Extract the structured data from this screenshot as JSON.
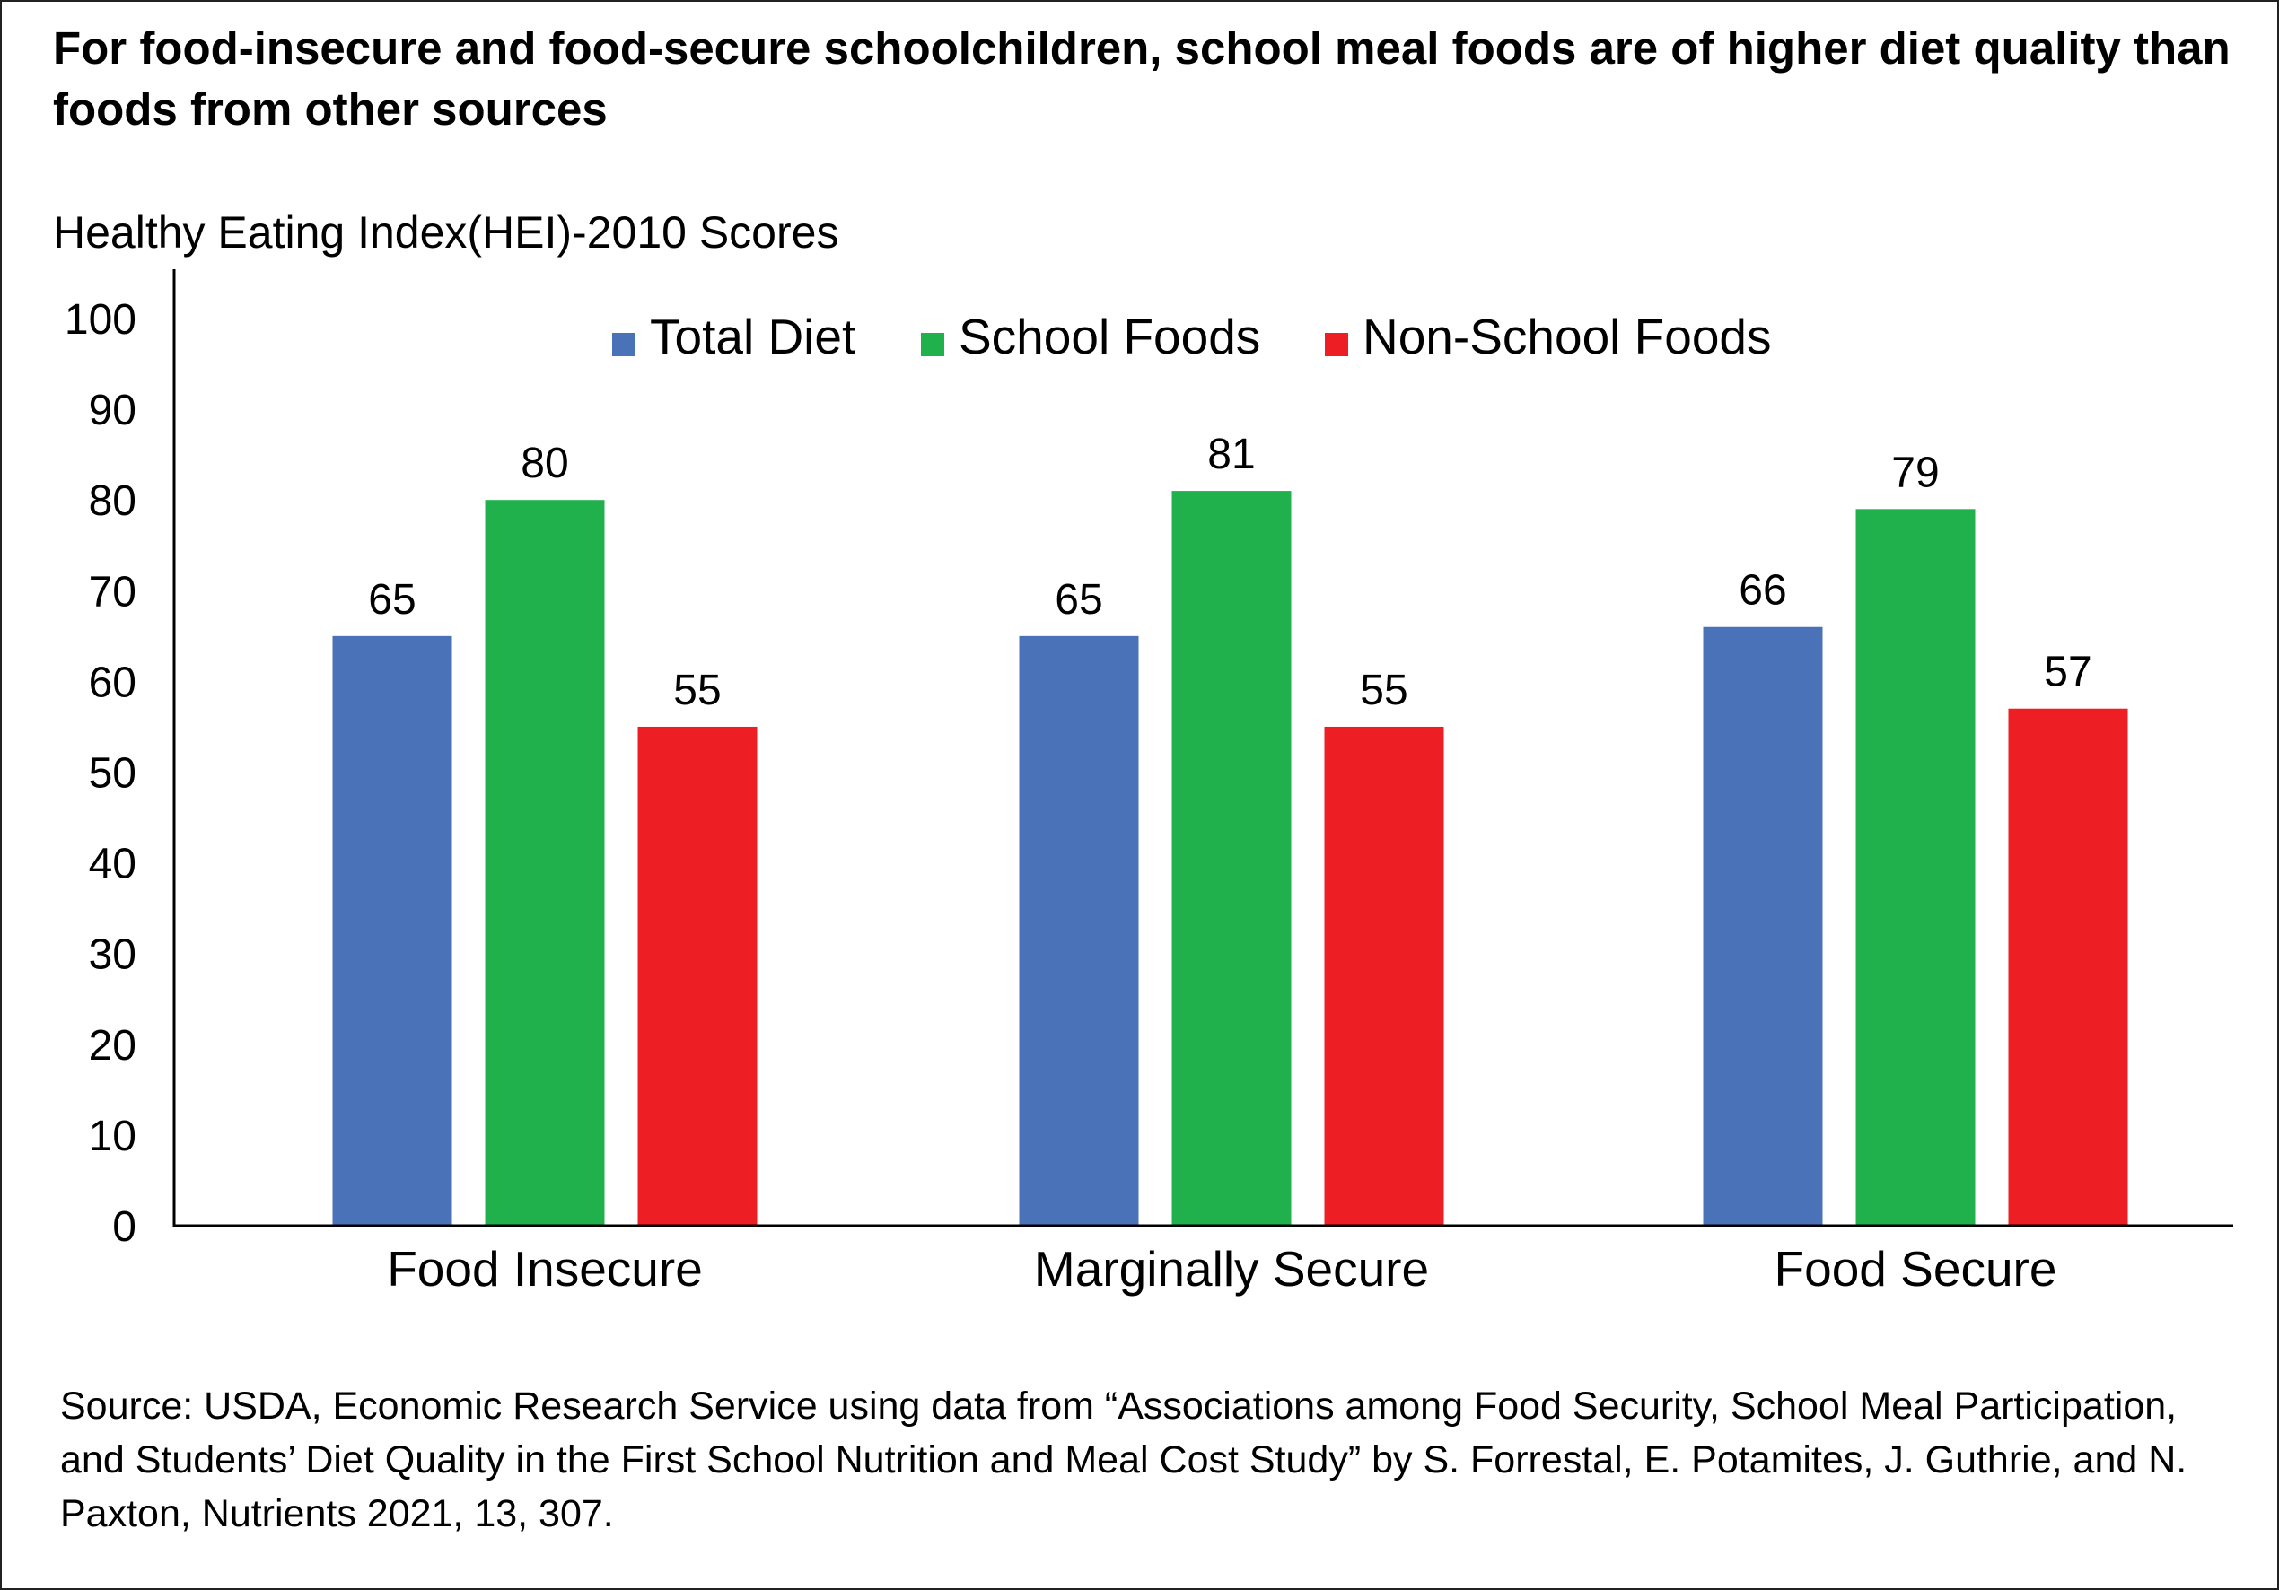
{
  "title": "For food-insecure and food-secure schoolchildren, school meal foods are of higher diet quality than foods from other sources",
  "source": "Source: USDA, Economic Research Service using data from “Associations among Food Security, School Meal Participation, and Students’ Diet Quality in the First School Nutrition and Meal Cost Study” by S. Forrestal, E. Potamites, J. Guthrie, and N. Paxton, Nutrients 2021, 13, 307.",
  "chart_data": {
    "type": "bar",
    "title": "For food-insecure and food-secure schoolchildren, school meal foods are of higher diet quality than foods from other sources",
    "ylabel": "Healthy Eating Index(HEI)-2010 Scores",
    "xlabel": "",
    "ylim": [
      0,
      100
    ],
    "yticks": [
      0,
      10,
      20,
      30,
      40,
      50,
      60,
      70,
      80,
      90,
      100
    ],
    "categories": [
      "Food Insecure",
      "Marginally Secure",
      "Food Secure"
    ],
    "series": [
      {
        "name": "Total Diet",
        "color": "#4a72b8",
        "values": [
          65,
          65,
          66
        ]
      },
      {
        "name": "School Foods",
        "color": "#20b14c",
        "values": [
          80,
          81,
          79
        ]
      },
      {
        "name": "Non-School Foods",
        "color": "#ee1e25",
        "values": [
          55,
          55,
          57
        ]
      }
    ],
    "data_labels": true,
    "legend_position": "top",
    "grid": false
  }
}
